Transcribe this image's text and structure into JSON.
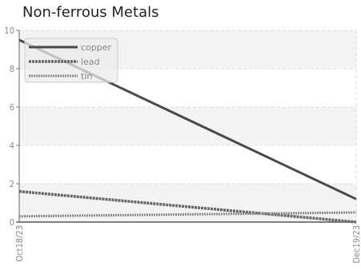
{
  "chart_data": {
    "type": "line",
    "title": "Non-ferrous Metals",
    "xlabel": "",
    "ylabel": "",
    "x": [
      "Oct18/23",
      "Dec19/23"
    ],
    "ylim": [
      0,
      10
    ],
    "yticks": [
      0,
      2,
      4,
      6,
      8,
      10
    ],
    "grid": true,
    "legend": "top-left",
    "series": [
      {
        "name": "copper",
        "values": [
          9.5,
          1.2
        ],
        "color": "#4a4a4a",
        "style": "solid"
      },
      {
        "name": "lead",
        "values": [
          1.6,
          0.0
        ],
        "color": "#666666",
        "style": "dashed"
      },
      {
        "name": "tin",
        "values": [
          0.3,
          0.5
        ],
        "color": "#8a8a8a",
        "style": "dotted"
      }
    ]
  }
}
